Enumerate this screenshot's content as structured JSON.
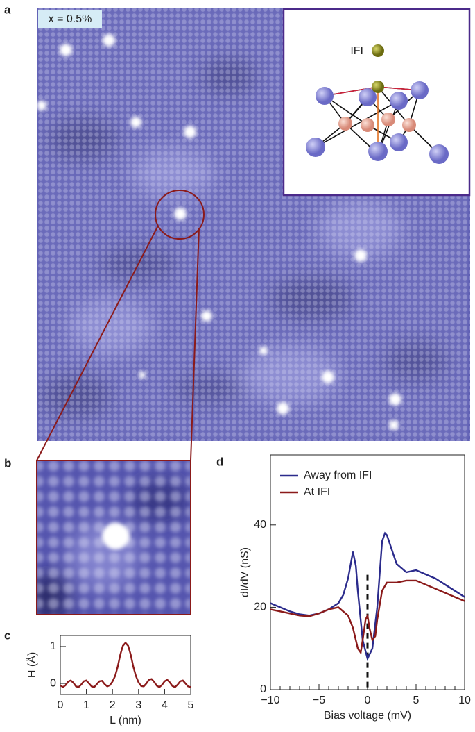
{
  "panel_labels": [
    "a",
    "b",
    "c",
    "d"
  ],
  "image_a": {
    "label": "x = 0.5%",
    "inset_label": "IFI"
  },
  "chart_data": [
    {
      "type": "line",
      "xlabel": "L (nm)",
      "ylabel": "H (Å)",
      "color": "#8b1a1a",
      "x": [
        0,
        0.1,
        0.2,
        0.3,
        0.4,
        0.5,
        0.6,
        0.7,
        0.8,
        0.9,
        1.0,
        1.1,
        1.2,
        1.3,
        1.4,
        1.5,
        1.6,
        1.7,
        1.8,
        1.9,
        2.0,
        2.1,
        2.2,
        2.3,
        2.4,
        2.5,
        2.6,
        2.7,
        2.8,
        2.9,
        3.0,
        3.1,
        3.2,
        3.3,
        3.4,
        3.5,
        3.6,
        3.7,
        3.8,
        3.9,
        4.0,
        4.1,
        4.2,
        4.3,
        4.4,
        4.5,
        4.6,
        4.7,
        4.8,
        4.9,
        5.0
      ],
      "values": [
        -0.05,
        -0.1,
        -0.05,
        0.05,
        0.08,
        0.02,
        -0.08,
        -0.1,
        -0.03,
        0.06,
        0.08,
        0.0,
        -0.08,
        -0.1,
        -0.02,
        0.06,
        0.07,
        -0.02,
        -0.08,
        -0.05,
        0.05,
        0.2,
        0.45,
        0.78,
        1.02,
        1.1,
        1.02,
        0.78,
        0.45,
        0.2,
        0.03,
        -0.07,
        -0.08,
        0.0,
        0.1,
        0.12,
        0.04,
        -0.06,
        -0.1,
        -0.04,
        0.06,
        0.1,
        0.03,
        -0.07,
        -0.1,
        -0.03,
        0.06,
        0.08,
        0.0,
        -0.08,
        -0.1
      ],
      "xlim": [
        0,
        5
      ],
      "xticks": [
        0,
        1,
        2,
        3,
        4,
        5
      ],
      "ylim": [
        -0.3,
        1.3
      ],
      "yticks": [
        0,
        1
      ]
    },
    {
      "type": "line",
      "xlabel": "Bias voltage (mV)",
      "ylabel": "dI/dV (nS)",
      "series": [
        {
          "name": "Away from IFI",
          "color": "#2b2b8c",
          "x": [
            -10,
            -9,
            -8,
            -7,
            -6,
            -5,
            -4,
            -3,
            -2.5,
            -2,
            -1.5,
            -1.2,
            -1,
            -0.5,
            0,
            0.5,
            1,
            1.5,
            1.8,
            2,
            2.5,
            3,
            4,
            5,
            6,
            7,
            8,
            9,
            10
          ],
          "values": [
            21,
            20,
            19,
            18.3,
            18,
            18.5,
            19.5,
            21,
            23,
            27,
            33.5,
            30,
            24,
            12,
            7.5,
            10,
            20,
            36,
            38,
            37.5,
            34,
            30.5,
            28.5,
            29,
            28,
            27,
            25.5,
            24,
            22.5
          ]
        },
        {
          "name": "At IFI",
          "color": "#8b1a1a",
          "x": [
            -10,
            -9,
            -8,
            -7,
            -6,
            -5,
            -4,
            -3,
            -2,
            -1.5,
            -1,
            -0.7,
            -0.5,
            -0.2,
            0,
            0.2,
            0.5,
            0.8,
            1,
            1.5,
            2,
            3,
            4,
            5,
            6,
            7,
            8,
            9,
            10
          ],
          "values": [
            19.5,
            19,
            18.5,
            18,
            17.8,
            18.5,
            19.5,
            20,
            18,
            15,
            10,
            9,
            12,
            17,
            18,
            15,
            12,
            13,
            17,
            24,
            26,
            26,
            26.5,
            26.5,
            25.5,
            24.5,
            23.5,
            22.5,
            21.5
          ]
        }
      ],
      "xlim": [
        -10,
        10
      ],
      "xticks": [
        {
          "value": -10,
          "label": "−10"
        },
        {
          "value": -5,
          "label": "−5"
        },
        0,
        5,
        10
      ],
      "minor_xticks": [
        -9,
        -8,
        -7,
        -6,
        -4,
        -3,
        -2,
        -1,
        1,
        2,
        3,
        4,
        6,
        7,
        8,
        9
      ],
      "ylim": [
        0,
        57
      ],
      "yticks": [
        0,
        20,
        40
      ],
      "vline": 0,
      "legend": "upper-left"
    }
  ]
}
